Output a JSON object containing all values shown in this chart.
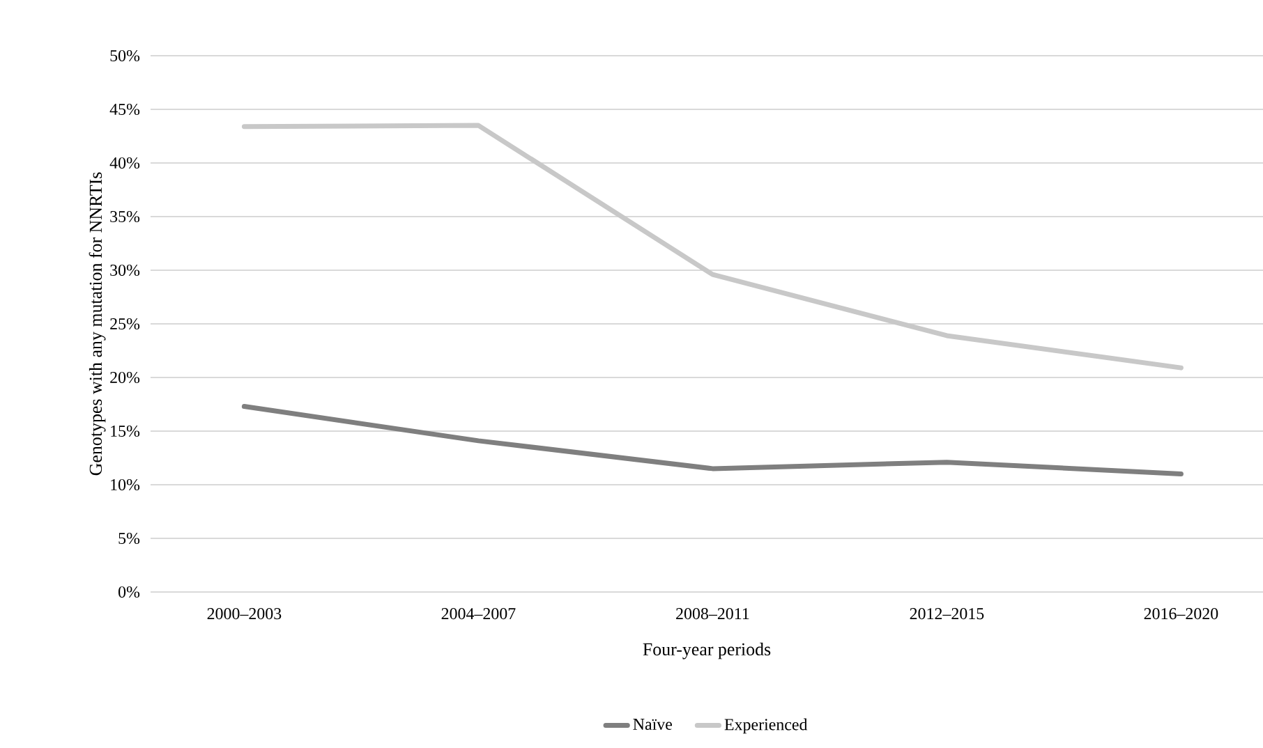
{
  "chart_data": {
    "type": "line",
    "xlabel": "Four-year periods",
    "ylabel": "Genotypes with any mutation for NNRTIs",
    "categories": [
      "2000–2003",
      "2004–2007",
      "2008–2011",
      "2012–2015",
      "2016–2020"
    ],
    "series": [
      {
        "name": "Naïve",
        "color": "#7f7f7f",
        "values": [
          17.3,
          14.1,
          11.5,
          12.1,
          11.0
        ]
      },
      {
        "name": "Experienced",
        "color": "#c8c8c8",
        "values": [
          43.4,
          43.5,
          29.6,
          23.9,
          20.9
        ]
      }
    ],
    "ylim": [
      0,
      50
    ],
    "yticks": [
      {
        "value": 0,
        "label": "0%"
      },
      {
        "value": 5,
        "label": "5%"
      },
      {
        "value": 10,
        "label": "10%"
      },
      {
        "value": 15,
        "label": "15%"
      },
      {
        "value": 20,
        "label": "20%"
      },
      {
        "value": 25,
        "label": "25%"
      },
      {
        "value": 30,
        "label": "30%"
      },
      {
        "value": 35,
        "label": "35%"
      },
      {
        "value": 40,
        "label": "40%"
      },
      {
        "value": 45,
        "label": "45%"
      },
      {
        "value": 50,
        "label": "50%"
      }
    ],
    "grid": "y",
    "legend": "bottom",
    "marker": "none",
    "line_style": "solid"
  }
}
